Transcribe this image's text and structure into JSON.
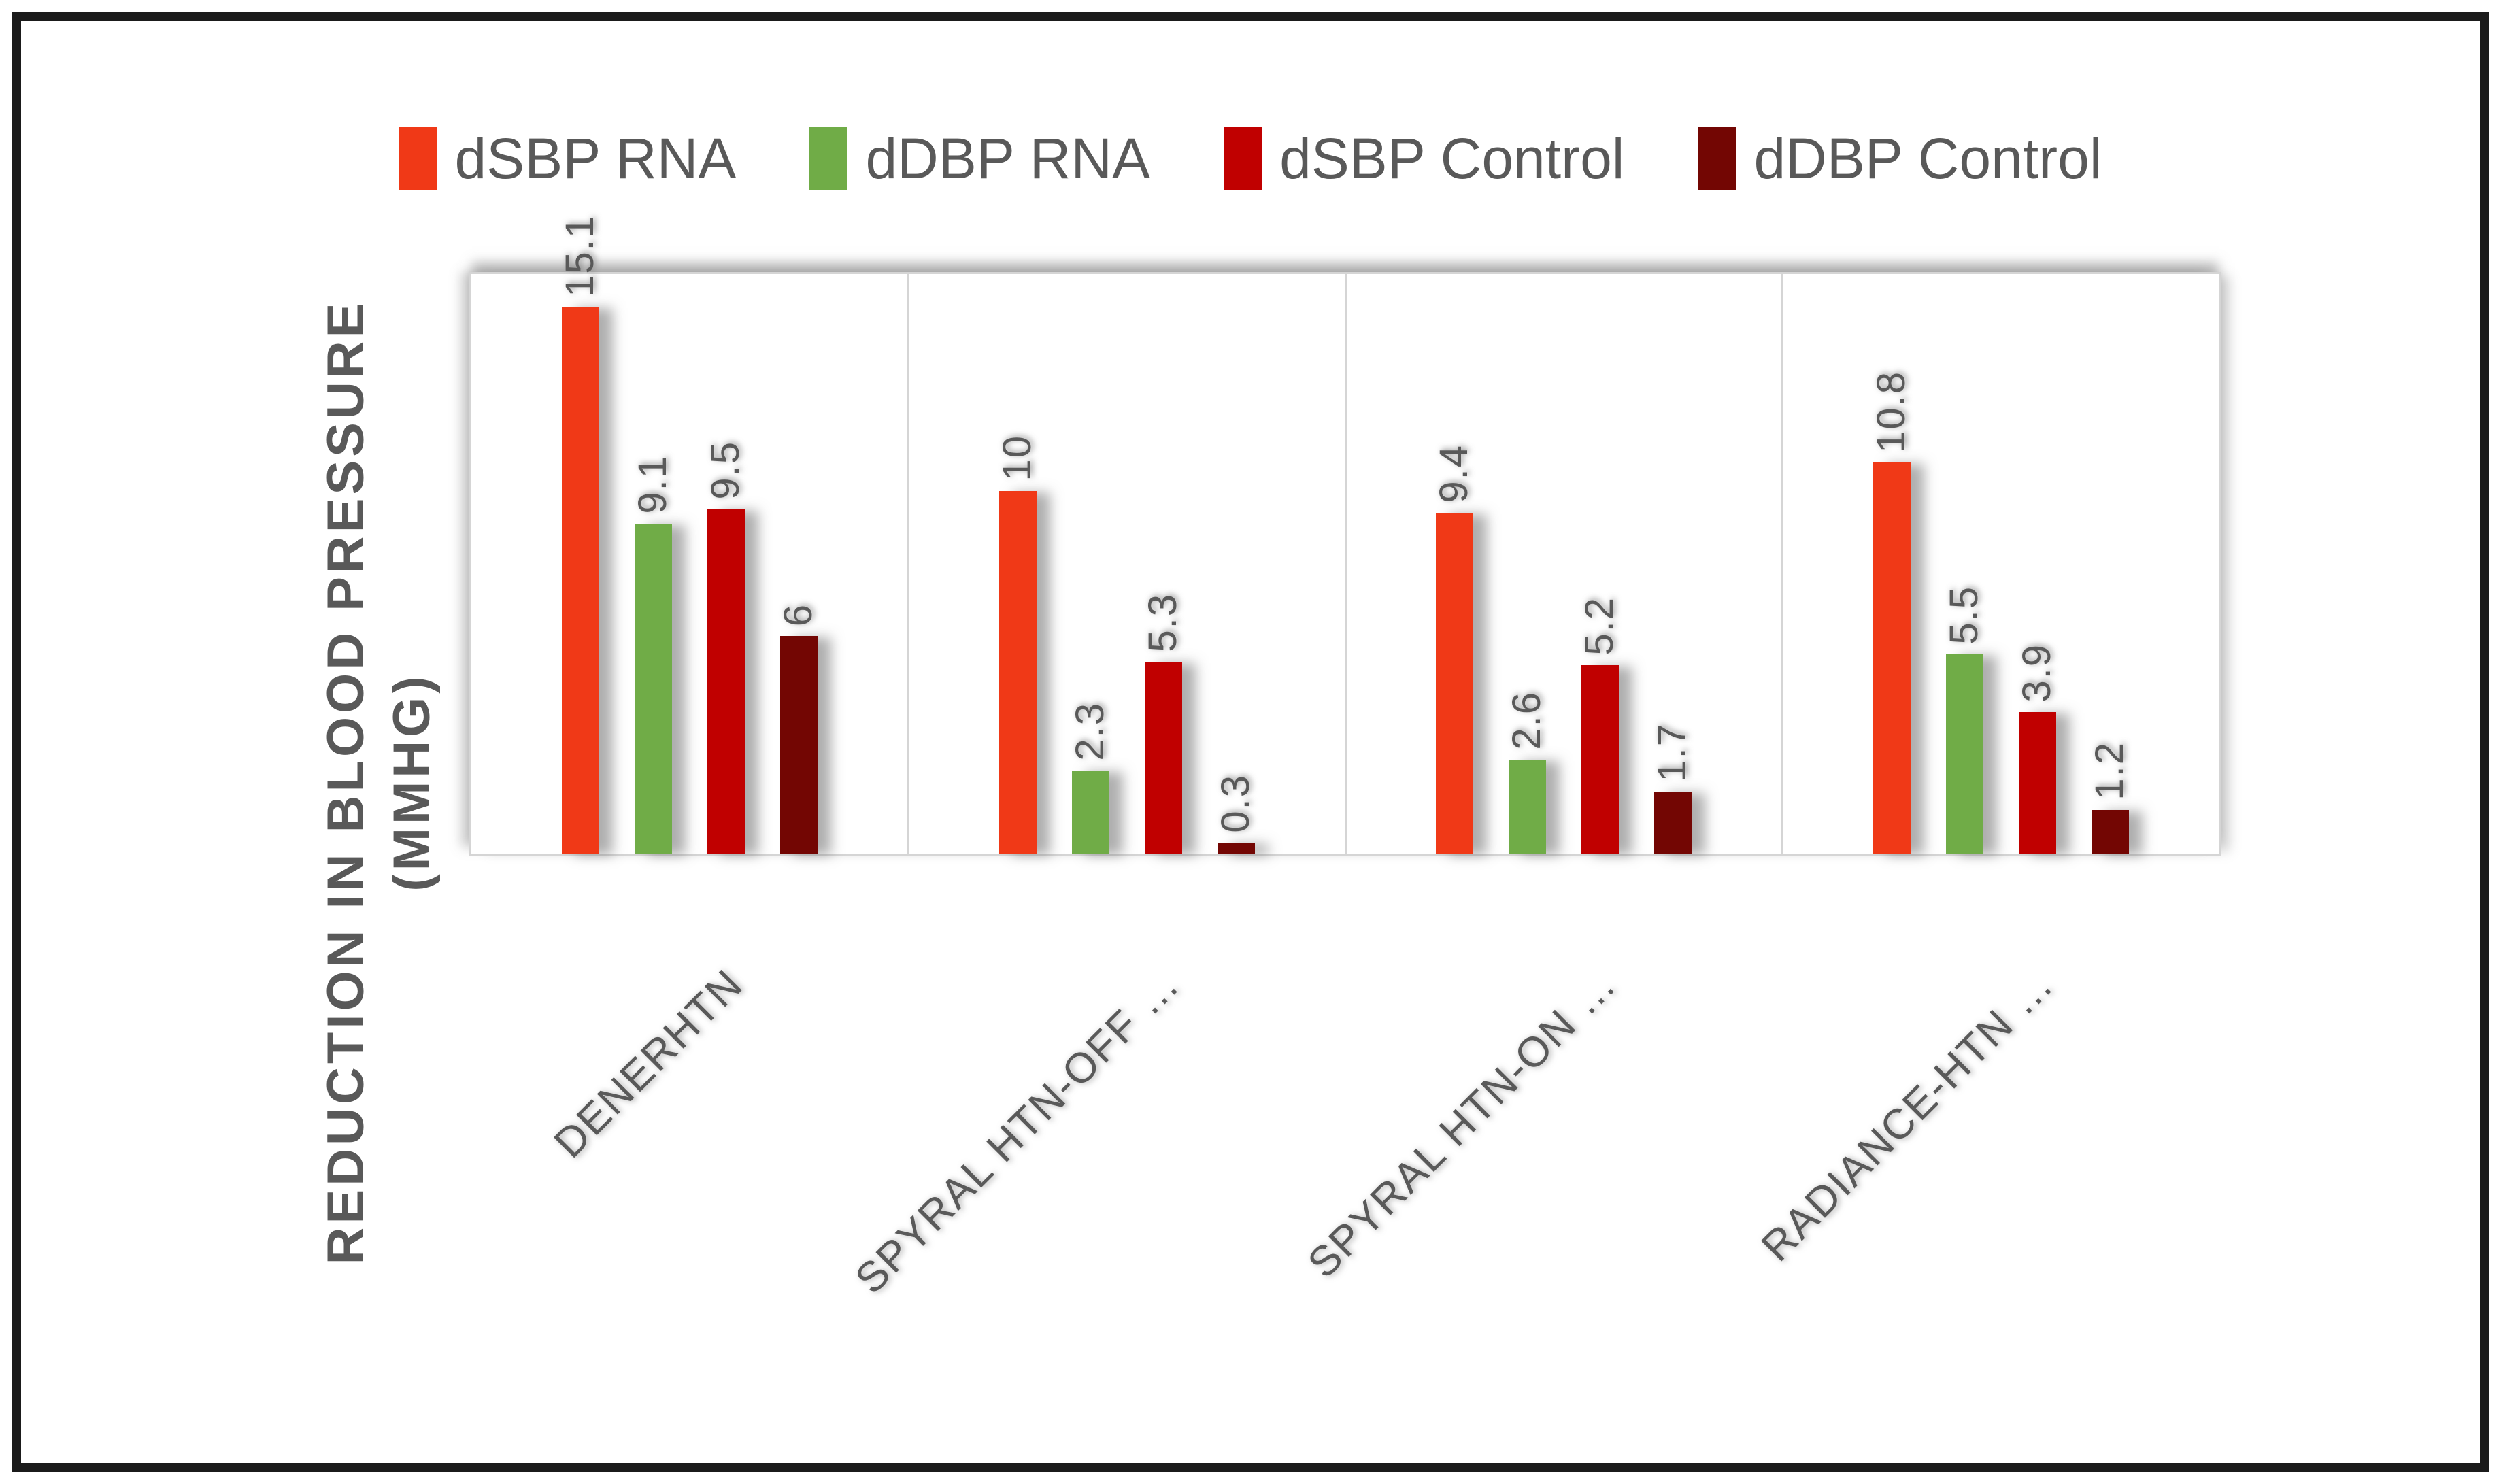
{
  "page": {
    "background": "#ffffff",
    "border_color": "#1b1b1b"
  },
  "chart_data": {
    "type": "bar",
    "title": "",
    "categories": [
      "DENERHTN",
      "SPYRAL HTN-OFF …",
      "SPYRAL HTN-ON …",
      "RADIANCE-HTN …"
    ],
    "series": [
      {
        "name": "dSBP RNA",
        "color": "#F03917",
        "values": [
          15.1,
          10,
          9.4,
          10.8
        ]
      },
      {
        "name": "dDBP RNA",
        "color": "#70AC47",
        "values": [
          9.1,
          2.3,
          2.6,
          5.5
        ]
      },
      {
        "name": "dSBP Control",
        "color": "#C00000",
        "values": [
          9.5,
          5.3,
          5.2,
          3.9
        ]
      },
      {
        "name": "dDBP Control",
        "color": "#730603",
        "values": [
          6,
          0.3,
          1.7,
          1.2
        ]
      }
    ],
    "ylabel_line1": "REDUCTION IN BLOOD PRESSURE",
    "ylabel_line2": "(MMHG)",
    "xlabel": "",
    "ylim": [
      0,
      16
    ],
    "y_axis_tick_labels_visible": false,
    "grid": "vertical category separators only",
    "legend_position": "top",
    "data_labels": "outside end, rotated 90",
    "text_color": "#595959",
    "axis_line_color": "#d5d5d5"
  }
}
